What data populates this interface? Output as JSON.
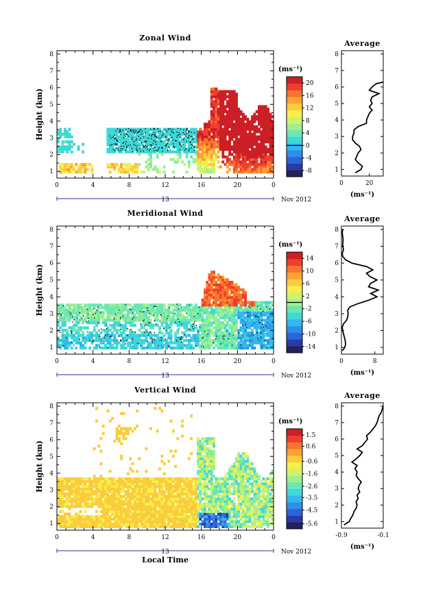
{
  "colormap": [
    "#23205a",
    "#2c3aa8",
    "#2f63d8",
    "#2f8ee8",
    "#33b7ee",
    "#40d7d7",
    "#6be6b5",
    "#9ef08e",
    "#cff26a",
    "#f4ef4c",
    "#fbcc3c",
    "#fba234",
    "#f87430",
    "#ef3f2c",
    "#cc1f26"
  ],
  "chart_data": [
    {
      "type": "heatmap",
      "title": "Zonal Wind",
      "ylabel": "Height (km)",
      "xlabel": "",
      "x_ticks": [
        "0",
        "4",
        "8",
        "12",
        "16",
        "20",
        "0"
      ],
      "y_ticks": [
        "1",
        "2",
        "3",
        "4",
        "5",
        "6",
        "7",
        "8"
      ],
      "xlim": [
        0,
        24
      ],
      "ylim": [
        0.6,
        8.2
      ],
      "date_day": "13",
      "date_month_year": "Nov 2012",
      "colorbar": {
        "unit_label": "(ms⁻¹)",
        "tick_labels": [
          "-8",
          "-4",
          "0",
          "4",
          "8",
          "12",
          "16",
          "20"
        ],
        "range": [
          -10,
          22
        ],
        "zero_contour_at": 0
      },
      "average_profile": {
        "title": "Average",
        "xlabel": "(ms⁻¹)",
        "x_ticks": [
          "0",
          "20"
        ],
        "xlim": [
          0,
          30
        ],
        "heights": [
          0.8,
          1.0,
          1.2,
          1.4,
          1.6,
          1.8,
          2.0,
          2.2,
          2.4,
          2.6,
          2.8,
          3.0,
          3.2,
          3.4,
          3.6,
          3.8,
          4.0,
          4.2,
          4.4,
          4.6,
          4.8,
          5.0,
          5.2,
          5.4,
          5.6,
          5.8,
          6.0,
          6.2,
          6.3
        ],
        "values": [
          10,
          14,
          15,
          12,
          10,
          11,
          12,
          14,
          13,
          10,
          8,
          8,
          9,
          9,
          12,
          18,
          18,
          19,
          20,
          22,
          20,
          22,
          21,
          22,
          27,
          20,
          22,
          25,
          30
        ]
      }
    },
    {
      "type": "heatmap",
      "title": "Meridional Wind",
      "ylabel": "Height (km)",
      "xlabel": "",
      "x_ticks": [
        "0",
        "4",
        "8",
        "12",
        "16",
        "20",
        "0"
      ],
      "y_ticks": [
        "1",
        "2",
        "3",
        "4",
        "5",
        "6",
        "7",
        "8"
      ],
      "xlim": [
        0,
        24
      ],
      "ylim": [
        0.6,
        8.2
      ],
      "date_day": "13",
      "date_month_year": "Nov 2012",
      "colorbar": {
        "unit_label": "(ms⁻¹)",
        "tick_labels": [
          "-14",
          "-10",
          "-6",
          "-2",
          "2",
          "6",
          "10",
          "14"
        ],
        "range": [
          -16,
          16
        ],
        "zero_contour_at": 0
      },
      "average_profile": {
        "title": "Average",
        "xlabel": "(ms⁻¹)",
        "x_ticks": [
          "0",
          "8"
        ],
        "xlim": [
          0,
          10
        ],
        "heights": [
          0.8,
          1.0,
          1.2,
          1.4,
          1.6,
          1.8,
          2.0,
          2.2,
          2.4,
          2.6,
          2.8,
          3.0,
          3.2,
          3.4,
          3.6,
          3.8,
          4.0,
          4.2,
          4.4,
          4.6,
          4.8,
          5.0,
          5.2,
          5.4,
          5.6,
          5.8,
          6.0,
          6.2,
          6.4,
          6.6,
          6.8,
          7.0,
          7.4,
          7.8,
          8.0
        ],
        "values": [
          0.2,
          0.8,
          1.0,
          0.9,
          0.7,
          0.5,
          0.3,
          0.2,
          0.5,
          1.2,
          1.5,
          1.6,
          1.5,
          2.0,
          4.0,
          6.5,
          8.5,
          7.0,
          8.8,
          6.5,
          7.0,
          8.5,
          6.8,
          6.0,
          7.5,
          6.0,
          2.5,
          1.0,
          0.3,
          0.2,
          0.5,
          0.3,
          0.4,
          0.2,
          0.3
        ]
      }
    },
    {
      "type": "heatmap",
      "title": "Vertical Wind",
      "ylabel": "Height (km)",
      "xlabel": "Local Time",
      "x_ticks": [
        "0",
        "4",
        "8",
        "12",
        "16",
        "20",
        "0"
      ],
      "y_ticks": [
        "1",
        "2",
        "3",
        "4",
        "5",
        "6",
        "7",
        "8"
      ],
      "xlim": [
        0,
        24
      ],
      "ylim": [
        0.6,
        8.2
      ],
      "date_day": "13",
      "date_month_year": "Nov 2012",
      "colorbar": {
        "unit_label": "(ms⁻¹)",
        "tick_labels": [
          "-5.6",
          "-4.5",
          "-3.5",
          "-2.6",
          "-1.6",
          "-0.6",
          "0.6",
          "1.5"
        ],
        "range": [
          -6.0,
          2.0
        ]
      },
      "average_profile": {
        "title": "Average",
        "xlabel": "(ms⁻¹)",
        "x_ticks": [
          "-0.9",
          "-0.1"
        ],
        "xlim": [
          -0.9,
          -0.1
        ],
        "heights": [
          0.8,
          1.0,
          1.2,
          1.4,
          1.6,
          1.8,
          2.0,
          2.2,
          2.4,
          2.6,
          2.8,
          3.0,
          3.2,
          3.4,
          3.6,
          3.8,
          4.0,
          4.2,
          4.4,
          4.6,
          4.8,
          5.0,
          5.2,
          5.4,
          5.6,
          5.8,
          6.0,
          6.2,
          6.4,
          6.6,
          6.8,
          7.0,
          7.2,
          7.4,
          7.6,
          7.8,
          8.0
        ],
        "values": [
          -0.85,
          -0.75,
          -0.72,
          -0.68,
          -0.66,
          -0.62,
          -0.6,
          -0.62,
          -0.58,
          -0.6,
          -0.55,
          -0.58,
          -0.56,
          -0.52,
          -0.58,
          -0.62,
          -0.6,
          -0.64,
          -0.6,
          -0.7,
          -0.62,
          -0.55,
          -0.5,
          -0.6,
          -0.5,
          -0.45,
          -0.4,
          -0.42,
          -0.35,
          -0.3,
          -0.25,
          -0.22,
          -0.2,
          -0.18,
          -0.14,
          -0.12,
          -0.1
        ]
      }
    }
  ]
}
